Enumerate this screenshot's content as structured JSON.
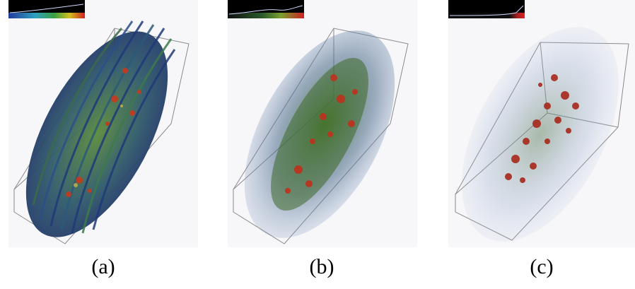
{
  "figure": {
    "panels": [
      {
        "id": "a",
        "caption": "(a)"
      },
      {
        "id": "b",
        "caption": "(b)"
      },
      {
        "id": "c",
        "caption": "(c)"
      }
    ]
  },
  "colors": {
    "background": "#ffffff",
    "panel_bg": "#f7f7f9",
    "streamline_blue": "#2a3f7a",
    "streamline_green": "#4f8a3a",
    "hotspot_red": "#c0301c",
    "box_outline": "#8a8a8a",
    "tf_bar_bg": "#000000"
  }
}
